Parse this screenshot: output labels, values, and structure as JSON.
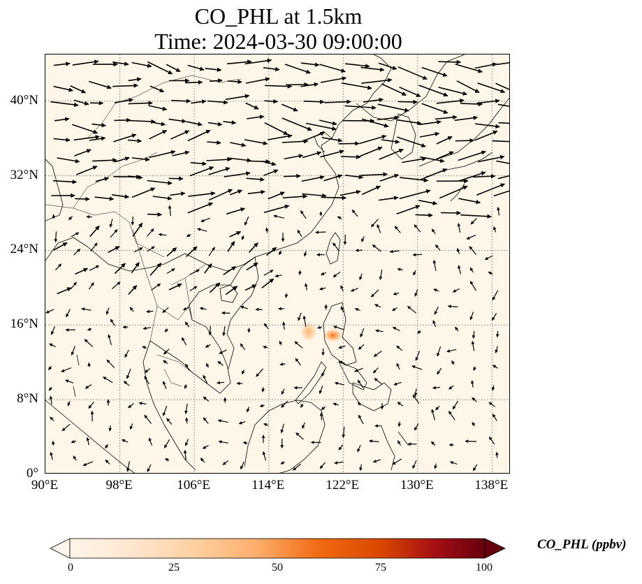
{
  "title": {
    "line1": "CO_PHL at 1.5km",
    "line2": "Time: 2024-03-30 09:00:00"
  },
  "map": {
    "extent": {
      "lon": [
        90,
        140
      ],
      "lat": [
        0,
        45
      ]
    },
    "lat_ticks": [
      {
        "value": 40,
        "label": "40°N"
      },
      {
        "value": 32,
        "label": "32°N"
      },
      {
        "value": 24,
        "label": "24°N"
      },
      {
        "value": 16,
        "label": "16°N"
      },
      {
        "value": 8,
        "label": "8°N"
      },
      {
        "value": 0,
        "label": "0°"
      }
    ],
    "lon_ticks": [
      {
        "value": 90,
        "label": "90°E"
      },
      {
        "value": 98,
        "label": "98°E"
      },
      {
        "value": 106,
        "label": "106°E"
      },
      {
        "value": 114,
        "label": "114°E"
      },
      {
        "value": 122,
        "label": "122°E"
      },
      {
        "value": 130,
        "label": "130°E"
      },
      {
        "value": 138,
        "label": "138°E"
      }
    ],
    "gridlines": "dotted",
    "background_color": "#fff6ea",
    "concentration_hotspots": [
      {
        "lon": 118.3,
        "lat": 15.3,
        "value": 30
      },
      {
        "lon": 120.9,
        "lat": 14.9,
        "value": 35
      }
    ],
    "wind_vectors": "black arrows across the domain"
  },
  "colorbar": {
    "label": "CO_PHL (ppbv)",
    "ticks": [
      "0",
      "25",
      "50",
      "75",
      "100"
    ],
    "range": [
      0,
      100
    ],
    "colormap": [
      "#fff5eb",
      "#fdd49e",
      "#fdae6b",
      "#f16913",
      "#d94801",
      "#a50f15",
      "#67000d"
    ]
  }
}
